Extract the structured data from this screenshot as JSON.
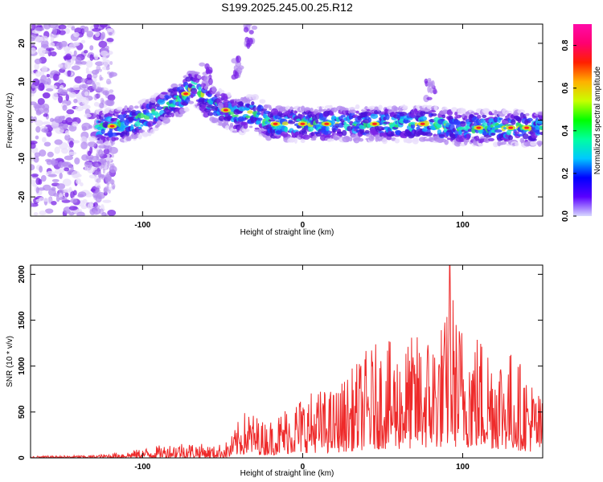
{
  "title": "S199.2025.245.00.25.R12",
  "colors": {
    "snr_line": "#ee2a2a",
    "spectrogram_ramp": [
      "#e8ddfb",
      "#b48cf0",
      "#7a24e6",
      "#4a10d8",
      "#2a3cff",
      "#12a8ff",
      "#18e6c8",
      "#30e060",
      "#d8e020",
      "#ff9a20",
      "#ff2020",
      "#ff1fa6"
    ],
    "colorbar_ramp": [
      "#d8d8ff",
      "#5a00ff",
      "#0000ff",
      "#00c8ff",
      "#00ffa0",
      "#00ff00",
      "#c8ff00",
      "#ffb000",
      "#ff2000",
      "#ff0070",
      "#ff0aa8"
    ]
  },
  "chart_data": [
    {
      "type": "heatmap",
      "title": "S199.2025.245.00.25.R12",
      "xlabel": "Height of straight line (km)",
      "ylabel": "Frequency (Hz)",
      "xlim": [
        -170,
        150
      ],
      "ylim": [
        -25,
        25
      ],
      "xticks": [
        -100,
        0,
        100
      ],
      "yticks": [
        -20,
        -10,
        0,
        10,
        20
      ],
      "colorbar": {
        "label": "Normalized spectral amplitude",
        "range": [
          0.0,
          0.9
        ],
        "ticks": [
          "0.0",
          "0.2",
          "0.4",
          "0.6",
          "0.8"
        ]
      },
      "ridge": {
        "x": [
          -125,
          -110,
          -95,
          -85,
          -75,
          -68,
          -60,
          -50,
          -40,
          -30,
          -20,
          -10,
          0,
          20,
          40,
          60,
          80,
          100,
          120,
          140,
          150
        ],
        "y": [
          -2,
          -1,
          1,
          4,
          6,
          9,
          5,
          3,
          1,
          2,
          -1,
          -1,
          -1,
          -1,
          -1,
          -1,
          -1,
          -2,
          -2,
          -2,
          -2
        ]
      },
      "hotspots_x": [
        -119,
        -73,
        -48,
        -17,
        0,
        15,
        45,
        75,
        110,
        130,
        140
      ]
    },
    {
      "type": "line",
      "xlabel": "Height of straight line (km)",
      "ylabel": "SNR (10 * v/v)",
      "xlim": [
        -170,
        150
      ],
      "ylim": [
        0,
        2100
      ],
      "xticks": [
        -100,
        0,
        100
      ],
      "yticks": [
        0,
        500,
        1000,
        1500,
        2000
      ],
      "envelope": {
        "x": [
          -170,
          -130,
          -110,
          -95,
          -85,
          -75,
          -65,
          -55,
          -45,
          -40,
          -35,
          -30,
          -25,
          -18,
          -10,
          0,
          10,
          20,
          28,
          40,
          50,
          60,
          70,
          80,
          90,
          92,
          95,
          100,
          110,
          120,
          130,
          140,
          150
        ],
        "y": [
          20,
          30,
          70,
          120,
          150,
          180,
          160,
          130,
          200,
          380,
          500,
          450,
          380,
          400,
          550,
          650,
          700,
          700,
          850,
          1100,
          1200,
          1150,
          1250,
          1300,
          1450,
          2100,
          1500,
          1400,
          1300,
          1200,
          1100,
          900,
          600
        ]
      }
    }
  ]
}
